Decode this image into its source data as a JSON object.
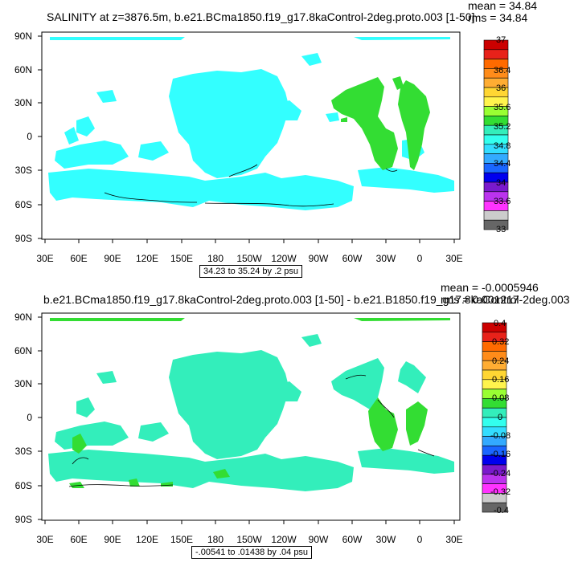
{
  "panels": [
    {
      "title": "SALINITY at z=3876.5m, b.e21.BCma1850.f19_g17.8kaControl-2deg.proto.003 [1-50]",
      "mean_text": "mean = 34.84",
      "rms_text": "rms = 34.84",
      "info_box": "34.23 to 35.24 by .2 psu",
      "lat_labels": [
        "90N",
        "60N",
        "30N",
        "0",
        "30S",
        "60S",
        "90S"
      ],
      "lon_labels": [
        "30E",
        "60E",
        "90E",
        "120E",
        "150E",
        "180",
        "150W",
        "120W",
        "90W",
        "60W",
        "30W",
        "0",
        "30E"
      ],
      "colorbar_labels": [
        "37",
        "36.4",
        "36",
        "35.6",
        "35.2",
        "34.8",
        "34.4",
        "34",
        "33.6",
        "33"
      ],
      "colorbar_colors": [
        "#cc0000",
        "#e8221a",
        "#ff6a00",
        "#ff8c1a",
        "#ffad33",
        "#ffd633",
        "#fff44d",
        "#99ff33",
        "#33dd33",
        "#33eebb",
        "#33ffee",
        "#33ddff",
        "#33aaff",
        "#1a66ff",
        "#0000ee",
        "#7a1acc",
        "#bb33ee",
        "#ff33ff",
        "#cccccc",
        "#666666"
      ]
    },
    {
      "title": "b.e21.BCma1850.f19_g17.8kaControl-2deg.proto.003 [1-50] - b.e21.B1850.f19_g17.8kaControl-2deg.003",
      "mean_text": "mean = -0.0005946",
      "rms_text": "rms = 0.001217",
      "info_box": "-.00541 to .01438 by .04 psu",
      "lat_labels": [
        "90N",
        "60N",
        "30N",
        "0",
        "30S",
        "60S",
        "90S"
      ],
      "lon_labels": [
        "30E",
        "60E",
        "90E",
        "120E",
        "150E",
        "180",
        "150W",
        "120W",
        "90W",
        "60W",
        "30W",
        "0",
        "30E"
      ],
      "colorbar_labels": [
        "0.4",
        "0.32",
        "0.24",
        "0.16",
        "0.08",
        "0",
        "-0.08",
        "-0.16",
        "-0.24",
        "-0.32",
        "-0.4"
      ],
      "colorbar_colors": [
        "#cc0000",
        "#e8221a",
        "#ff6a00",
        "#ff8c1a",
        "#ffad33",
        "#ffd633",
        "#fff44d",
        "#99ff33",
        "#33dd33",
        "#33eebb",
        "#33ffee",
        "#33ddff",
        "#33aaff",
        "#1a66ff",
        "#0000ee",
        "#7a1acc",
        "#bb33ee",
        "#ff33ff",
        "#cccccc",
        "#666666"
      ]
    }
  ],
  "fill_colors": {
    "cyan": "#33ffff",
    "green": "#33dd33",
    "teal": "#33eebb"
  }
}
